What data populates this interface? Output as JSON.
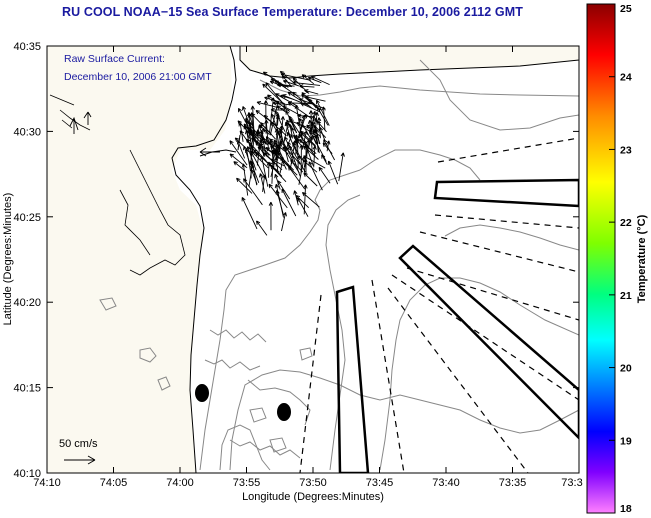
{
  "title": "RU COOL  NOAA−15  Sea Surface Temperature:  December 10, 2006 2112 GMT",
  "annotation": {
    "line1": "Raw Surface Current:",
    "line2": "December 10, 2006 21:00 GMT"
  },
  "scale_label": "50 cm/s",
  "x_axis": {
    "label": "Longitude (Degrees:Minutes)",
    "ticks": [
      "74:10",
      "74:05",
      "74:00",
      "73:55",
      "73:50",
      "73:45",
      "73:40",
      "73:35",
      "73:3"
    ]
  },
  "y_axis": {
    "label": "Latitude (Degrees:Minutes)",
    "ticks": [
      "40:35",
      "40:30",
      "40:25",
      "40:20",
      "40:15",
      "40:10"
    ]
  },
  "colorbar": {
    "label": "Temperature (°C)",
    "ticks": [
      "25",
      "24",
      "23",
      "22",
      "21",
      "20",
      "19",
      "18"
    ],
    "colors": [
      "#8b0000",
      "#ff0000",
      "#ff8c00",
      "#ffff00",
      "#7fff00",
      "#00ff80",
      "#00ffff",
      "#0080ff",
      "#0000ff",
      "#8000ff",
      "#ff80ff"
    ]
  },
  "colors": {
    "text_blue": "#1a1aa0",
    "land": "#fbf9f0",
    "ocean": "#ffffff"
  }
}
